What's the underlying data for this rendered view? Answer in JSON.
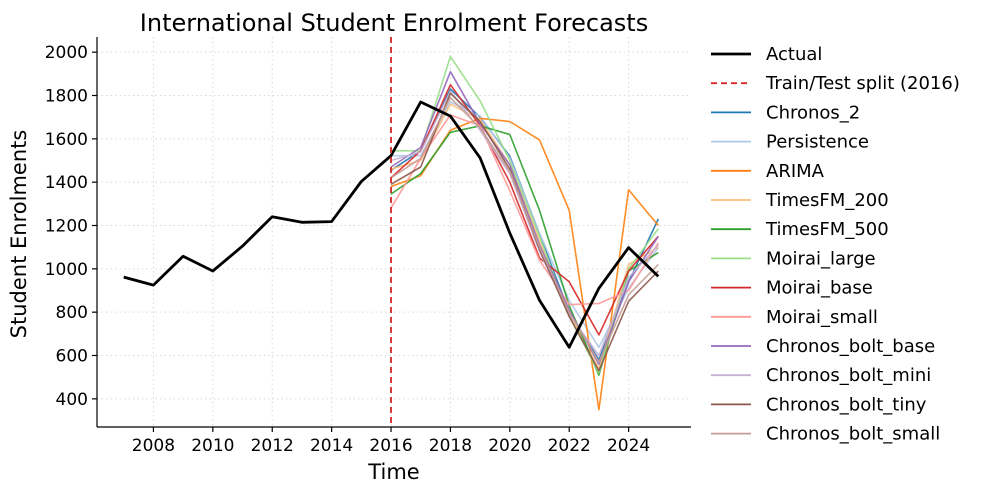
{
  "chart_data": {
    "type": "line",
    "title": "International Student Enrolment Forecasts",
    "xlabel": "Time",
    "ylabel": "Student Enrolments",
    "xlim": [
      2006.1,
      2026.1
    ],
    "ylim": [
      270,
      2070
    ],
    "xticks": [
      2008,
      2010,
      2012,
      2014,
      2016,
      2018,
      2020,
      2022,
      2024
    ],
    "yticks": [
      400,
      600,
      800,
      1000,
      1200,
      1400,
      1600,
      1800,
      2000
    ],
    "grid": true,
    "legend_position": "outside-right",
    "split": {
      "label": "Train/Test split (2016)",
      "x": 2016,
      "color": "#d62728"
    },
    "actual": {
      "name": "Actual",
      "color": "#000000",
      "x": [
        2007,
        2008,
        2009,
        2010,
        2011,
        2012,
        2013,
        2014,
        2015,
        2016,
        2017,
        2018,
        2019,
        2020,
        2021,
        2022,
        2023,
        2024,
        2025
      ],
      "values": [
        962,
        925,
        1058,
        990,
        1105,
        1240,
        1215,
        1218,
        1403,
        1522,
        1770,
        1705,
        1512,
        1165,
        855,
        638,
        910,
        1098,
        965
      ]
    },
    "forecast_x": [
      2016,
      2017,
      2018,
      2019,
      2020,
      2021,
      2022,
      2023,
      2024,
      2025
    ],
    "series": [
      {
        "name": "Chronos_2",
        "color": "#1f77b4",
        "values": [
          1455,
          1545,
          1830,
          1700,
          1520,
          1160,
          800,
          580,
          940,
          1230
        ]
      },
      {
        "name": "Persistence",
        "color": "#aec7e8",
        "values": [
          1522,
          1522,
          1770,
          1705,
          1512,
          1165,
          855,
          638,
          910,
          1098
        ]
      },
      {
        "name": "ARIMA",
        "color": "#ff7f0e",
        "values": [
          1380,
          1430,
          1640,
          1695,
          1680,
          1595,
          1270,
          350,
          1365,
          1200
        ]
      },
      {
        "name": "TimesFM_200",
        "color": "#ffbb78",
        "values": [
          1460,
          1500,
          1760,
          1690,
          1480,
          1130,
          790,
          540,
          1020,
          1100
        ]
      },
      {
        "name": "TimesFM_500",
        "color": "#2ca02c",
        "values": [
          1345,
          1440,
          1630,
          1660,
          1620,
          1270,
          830,
          510,
          990,
          1075
        ]
      },
      {
        "name": "Moirai_large",
        "color": "#98df8a",
        "values": [
          1545,
          1545,
          1980,
          1775,
          1500,
          1150,
          780,
          520,
          1000,
          1185
        ]
      },
      {
        "name": "Moirai_base",
        "color": "#d62728",
        "values": [
          1420,
          1545,
          1850,
          1660,
          1400,
          1050,
          940,
          695,
          990,
          1150
        ]
      },
      {
        "name": "Moirai_small",
        "color": "#ff9896",
        "values": [
          1280,
          1510,
          1710,
          1660,
          1360,
          1040,
          835,
          840,
          900,
          1120
        ]
      },
      {
        "name": "Chronos_bolt_base",
        "color": "#9467bd",
        "values": [
          1470,
          1560,
          1910,
          1670,
          1480,
          1110,
          810,
          560,
          940,
          1150
        ]
      },
      {
        "name": "Chronos_bolt_mini",
        "color": "#c5b0d5",
        "values": [
          1500,
          1540,
          1820,
          1640,
          1440,
          1080,
          790,
          600,
          960,
          1110
        ]
      },
      {
        "name": "Chronos_bolt_tiny",
        "color": "#8c564b",
        "values": [
          1390,
          1470,
          1810,
          1680,
          1460,
          1090,
          780,
          530,
          850,
          990
        ]
      },
      {
        "name": "Chronos_bolt_small",
        "color": "#c49c94",
        "values": [
          1420,
          1510,
          1790,
          1650,
          1450,
          1100,
          800,
          570,
          880,
          1020
        ]
      }
    ]
  }
}
